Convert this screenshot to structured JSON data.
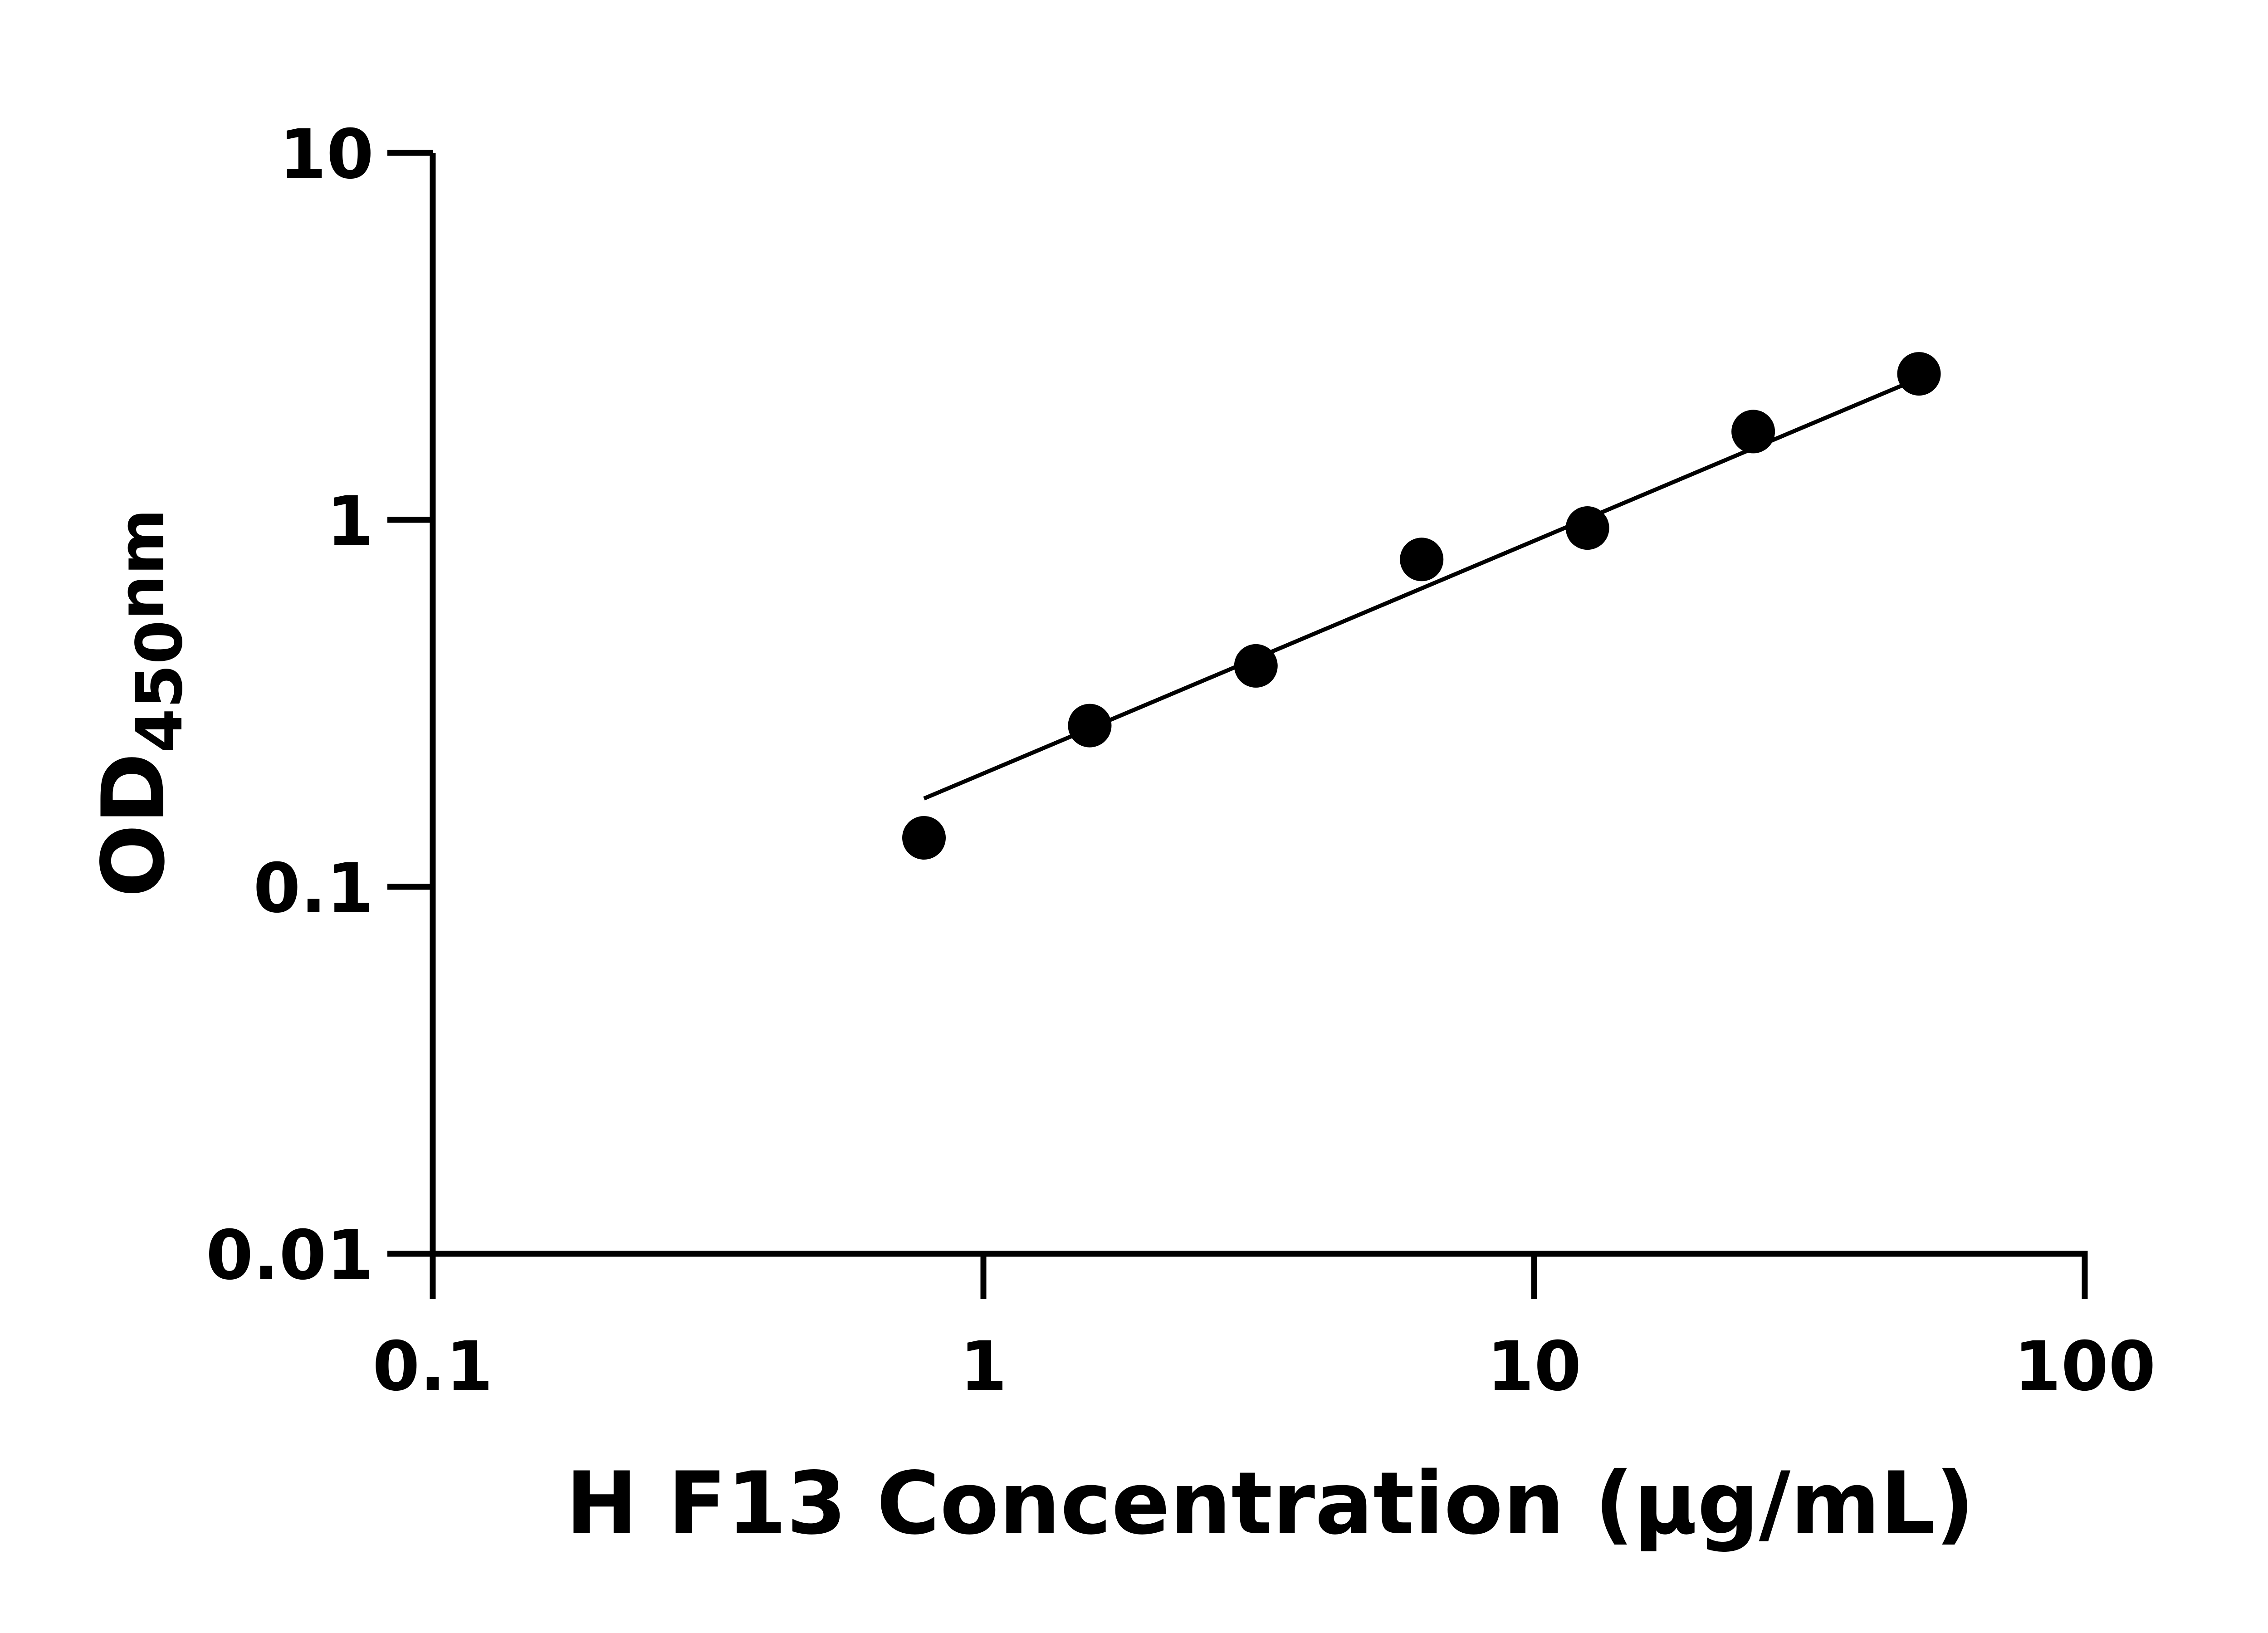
{
  "chart_data": {
    "type": "scatter",
    "xlabel": "H F13 Concentration (μg/mL)",
    "ylabel": {
      "main": "OD",
      "sub": "450",
      "suffix": "nm"
    },
    "xscale": "log",
    "yscale": "log",
    "xlim": [
      0.1,
      100
    ],
    "ylim": [
      0.01,
      10
    ],
    "xticks": [
      "0.1",
      "1",
      "10",
      "100"
    ],
    "yticks": [
      "0.01",
      "0.1",
      "1",
      "10"
    ],
    "grid": false,
    "legend": "none",
    "series": [
      {
        "marker": "filled-circle",
        "color": "#000000",
        "x": [
          0.78,
          1.56,
          3.125,
          6.25,
          12.5,
          25,
          50
        ],
        "y": [
          0.136,
          0.275,
          0.4,
          0.78,
          0.95,
          1.74,
          2.5
        ]
      }
    ],
    "fit_line": {
      "x": [
        0.78,
        50
      ],
      "y": [
        0.174,
        2.43
      ],
      "color": "#000000"
    }
  }
}
